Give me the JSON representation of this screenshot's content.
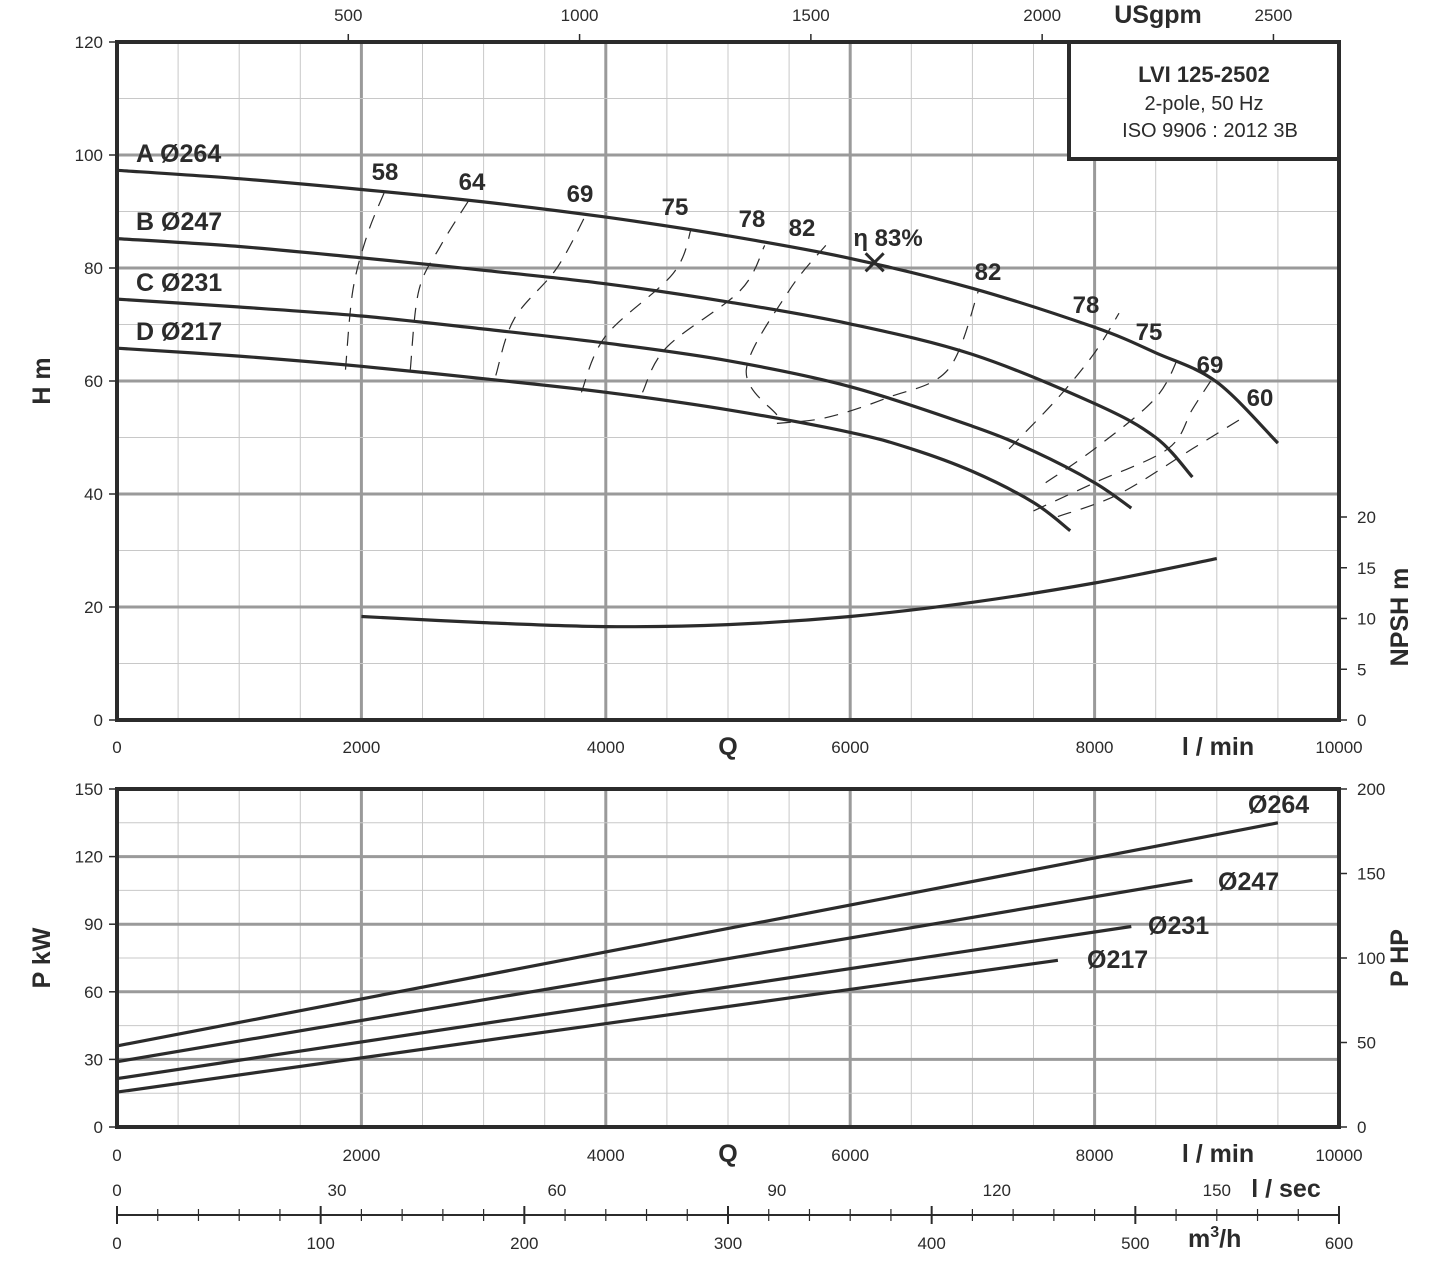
{
  "title_box": {
    "model": "LVI 125-2502",
    "line2": "2-pole, 50 Hz",
    "line3": "ISO 9906 : 2012 3B"
  },
  "colors": {
    "ink": "#2b2b2b",
    "major_grid": "#9a9a9a",
    "minor_grid": "#c8c8c8"
  },
  "chart_data": [
    {
      "id": "head",
      "type": "line",
      "x_range": [
        0,
        10000
      ],
      "ylim": [
        0,
        120
      ],
      "y_ticks": [
        0,
        20,
        40,
        60,
        80,
        100,
        120
      ],
      "x_ticks": [
        0,
        2000,
        4000,
        6000,
        8000,
        10000
      ],
      "xlabel_q": "Q",
      "xlabel_unit": "l / min",
      "ylabel": "H m",
      "top_axis": {
        "label": "USgpm",
        "ticks": [
          500,
          1000,
          1500,
          2000,
          2500
        ]
      },
      "npsh_axis": {
        "label": "NPSH m",
        "ticks": [
          0,
          5,
          10,
          15,
          20
        ],
        "range": [
          0,
          20
        ]
      },
      "series": [
        {
          "name": "A Ø264",
          "x": [
            0,
            1000,
            2000,
            3000,
            4000,
            5000,
            6000,
            7000,
            8000,
            8500,
            9000,
            9500
          ],
          "y": [
            97.3,
            95.8,
            93.9,
            91.7,
            89.0,
            85.7,
            81.7,
            76.4,
            69.5,
            65.0,
            59.8,
            49.0
          ]
        },
        {
          "name": "B Ø247",
          "x": [
            0,
            1000,
            2000,
            3000,
            4000,
            5000,
            6000,
            7000,
            8000,
            8500,
            8800
          ],
          "y": [
            85.2,
            83.8,
            81.8,
            79.6,
            77.2,
            74.0,
            70.1,
            64.7,
            56.0,
            50.0,
            43.0
          ]
        },
        {
          "name": "C Ø231",
          "x": [
            0,
            1000,
            2000,
            3000,
            4000,
            5000,
            6000,
            7000,
            7500,
            8000,
            8300
          ],
          "y": [
            74.5,
            73.1,
            71.5,
            69.2,
            66.7,
            63.6,
            59.0,
            52.0,
            47.6,
            42.0,
            37.5
          ]
        },
        {
          "name": "D Ø217",
          "x": [
            0,
            1000,
            2000,
            3000,
            4000,
            5000,
            6000,
            6500,
            7000,
            7500,
            7800
          ],
          "y": [
            65.8,
            64.4,
            62.6,
            60.4,
            58.0,
            54.9,
            50.9,
            48.0,
            44.0,
            38.5,
            33.5
          ]
        }
      ],
      "npsh": {
        "x": [
          2000,
          3000,
          4000,
          5000,
          6000,
          7000,
          8000,
          9000
        ],
        "y": [
          10.2,
          9.6,
          9.2,
          9.4,
          10.2,
          11.6,
          13.5,
          15.9
        ]
      },
      "bep": {
        "x": 6200,
        "y": 81,
        "label": "η 83%"
      },
      "efficiency_iso": [
        {
          "label": "58",
          "x": [
            1870,
            1930,
            2050,
            2200
          ],
          "y": [
            62,
            76,
            86,
            94
          ]
        },
        {
          "label": "64",
          "x": [
            2400,
            2470,
            2650,
            2880
          ],
          "y": [
            62,
            76,
            84,
            92
          ]
        },
        {
          "label": "69",
          "x": [
            3100,
            3250,
            3600,
            3850
          ],
          "y": [
            61,
            71,
            80,
            90
          ]
        },
        {
          "label": "75",
          "x": [
            3800,
            4000,
            4550,
            4700
          ],
          "y": [
            58,
            68,
            79,
            87
          ]
        },
        {
          "label": "78",
          "x": [
            4300,
            4500,
            5100,
            5300
          ],
          "y": [
            58,
            66,
            76,
            84
          ]
        },
        {
          "label": "82",
          "x": [
            5400,
            5150,
            5500,
            5800
          ],
          "y": [
            54,
            62,
            76,
            84
          ]
        },
        {
          "label": "82",
          "x": [
            5400,
            5800,
            6300,
            6800,
            7050
          ],
          "y": [
            52.5,
            53.5,
            57,
            62,
            76
          ]
        },
        {
          "label": "78",
          "x": [
            7300,
            7700,
            8000,
            8200
          ],
          "y": [
            48,
            57,
            65,
            72
          ]
        },
        {
          "label": "75",
          "x": [
            7600,
            8000,
            8500,
            8700
          ],
          "y": [
            42,
            48,
            57,
            65
          ]
        },
        {
          "label": "69",
          "x": [
            7500,
            8000,
            8600,
            8800,
            8950
          ],
          "y": [
            37,
            42,
            48,
            55,
            60
          ]
        },
        {
          "label": "60",
          "x": [
            7700,
            8200,
            8800,
            9250
          ],
          "y": [
            36,
            40,
            48,
            54
          ]
        }
      ]
    },
    {
      "id": "power",
      "type": "line",
      "x_range": [
        0,
        10000
      ],
      "ylim": [
        0,
        150
      ],
      "y_ticks": [
        0,
        30,
        60,
        90,
        120,
        150
      ],
      "x_ticks": [
        0,
        2000,
        4000,
        6000,
        8000,
        10000
      ],
      "xlabel_q": "Q",
      "xlabel_unit": "l / min",
      "ylabel": "P kW",
      "hp_axis": {
        "label": "P HP",
        "ticks": [
          0,
          50,
          100,
          150,
          200
        ],
        "range": [
          0,
          200
        ]
      },
      "lsec_axis": {
        "label": "l / sec",
        "ticks": [
          0,
          30,
          60,
          90,
          120,
          150
        ],
        "range": [
          0,
          166.667
        ]
      },
      "m3h_axis": {
        "label": "m3/h",
        "ticks": [
          0,
          100,
          200,
          300,
          400,
          500,
          600
        ],
        "range": [
          0,
          600
        ]
      },
      "series": [
        {
          "name": "Ø264",
          "x": [
            0,
            9500
          ],
          "y": [
            36,
            135
          ]
        },
        {
          "name": "Ø247",
          "x": [
            0,
            8800
          ],
          "y": [
            29,
            109.5
          ]
        },
        {
          "name": "Ø231",
          "x": [
            0,
            8300
          ],
          "y": [
            21.5,
            89
          ]
        },
        {
          "name": "Ø217",
          "x": [
            0,
            7700
          ],
          "y": [
            15.5,
            74
          ]
        }
      ]
    }
  ]
}
